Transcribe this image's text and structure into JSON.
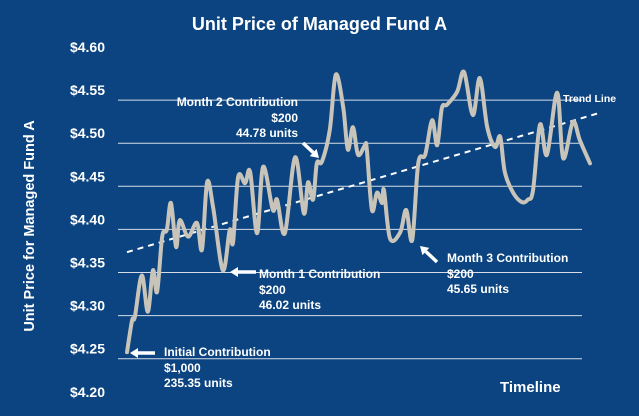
{
  "chart_data": {
    "type": "line",
    "title": "Unit Price of Managed Fund A",
    "xlabel": "Timeline",
    "ylabel": "Unit Price for Managed Fund A",
    "ylim": [
      4.2,
      4.6
    ],
    "xlim": [
      0,
      100
    ],
    "yticks": [
      "$4.60",
      "$4.55",
      "$4.50",
      "$4.45",
      "$4.40",
      "$4.35",
      "$4.30",
      "$4.25",
      "$4.20"
    ],
    "ytick_values": [
      4.6,
      4.55,
      4.5,
      4.45,
      4.4,
      4.35,
      4.3,
      4.25,
      4.2
    ],
    "grid": true,
    "series": [
      {
        "name": "Unit Price",
        "color": "#c9c4b9",
        "points": [
          [
            0,
            4.246
          ],
          [
            1.1,
            4.283
          ],
          [
            1.7,
            4.287
          ],
          [
            3.2,
            4.335
          ],
          [
            4.5,
            4.293
          ],
          [
            5.6,
            4.341
          ],
          [
            6.5,
            4.316
          ],
          [
            7.6,
            4.38
          ],
          [
            8.6,
            4.388
          ],
          [
            9.5,
            4.419
          ],
          [
            10.6,
            4.368
          ],
          [
            11.4,
            4.399
          ],
          [
            13.2,
            4.38
          ],
          [
            15.1,
            4.396
          ],
          [
            16.2,
            4.365
          ],
          [
            17.3,
            4.443
          ],
          [
            18.6,
            4.414
          ],
          [
            20.7,
            4.341
          ],
          [
            22.2,
            4.388
          ],
          [
            22.9,
            4.373
          ],
          [
            24.0,
            4.449
          ],
          [
            25.5,
            4.442
          ],
          [
            26.6,
            4.455
          ],
          [
            28.1,
            4.384
          ],
          [
            29.4,
            4.461
          ],
          [
            31.5,
            4.411
          ],
          [
            32.4,
            4.423
          ],
          [
            34.1,
            4.384
          ],
          [
            36.3,
            4.472
          ],
          [
            38.2,
            4.407
          ],
          [
            39.1,
            4.443
          ],
          [
            40.2,
            4.423
          ],
          [
            41.0,
            4.465
          ],
          [
            42.1,
            4.467
          ],
          [
            43.8,
            4.504
          ],
          [
            45.1,
            4.568
          ],
          [
            46.7,
            4.53
          ],
          [
            47.7,
            4.481
          ],
          [
            48.8,
            4.507
          ],
          [
            49.9,
            4.475
          ],
          [
            51.4,
            4.486
          ],
          [
            51.8,
            4.481
          ],
          [
            52.9,
            4.411
          ],
          [
            54.0,
            4.431
          ],
          [
            55.1,
            4.419
          ],
          [
            55.5,
            4.434
          ],
          [
            56.8,
            4.378
          ],
          [
            59.0,
            4.385
          ],
          [
            60.3,
            4.411
          ],
          [
            61.6,
            4.376
          ],
          [
            62.9,
            4.465
          ],
          [
            64.4,
            4.475
          ],
          [
            65.9,
            4.515
          ],
          [
            67.0,
            4.486
          ],
          [
            68.0,
            4.529
          ],
          [
            69.1,
            4.533
          ],
          [
            71.3,
            4.548
          ],
          [
            72.8,
            4.571
          ],
          [
            74.7,
            4.521
          ],
          [
            76.2,
            4.564
          ],
          [
            77.8,
            4.507
          ],
          [
            79.5,
            4.484
          ],
          [
            80.6,
            4.496
          ],
          [
            81.6,
            4.455
          ],
          [
            83.4,
            4.431
          ],
          [
            85.3,
            4.42
          ],
          [
            86.6,
            4.423
          ],
          [
            87.7,
            4.434
          ],
          [
            89.2,
            4.51
          ],
          [
            90.7,
            4.475
          ],
          [
            92.9,
            4.547
          ],
          [
            94.2,
            4.471
          ],
          [
            96.3,
            4.513
          ],
          [
            97.8,
            4.492
          ],
          [
            100,
            4.465
          ]
        ]
      }
    ],
    "trend_line": {
      "label": "Trend Line",
      "color": "#ffffff",
      "points": [
        [
          0,
          4.362
        ],
        [
          101.7,
          4.523
        ]
      ]
    },
    "annotations": [
      {
        "id": "initial",
        "title": "Initial Contribution",
        "amount": "$1,000",
        "units": "235.35 units",
        "x": 0,
        "y": 4.246
      },
      {
        "id": "month1",
        "title": "Month 1 Contribution",
        "amount": "$200",
        "units": "46.02 units",
        "x": 20.7,
        "y": 4.341
      },
      {
        "id": "month2",
        "title": "Month 2 Contribution",
        "amount": "$200",
        "units": "44.78 units",
        "x": 41.3,
        "y": 4.467
      },
      {
        "id": "month3",
        "title": "Month 3 Contribution",
        "amount": "$200",
        "units": "45.65 units",
        "x": 61.6,
        "y": 4.376
      }
    ]
  }
}
